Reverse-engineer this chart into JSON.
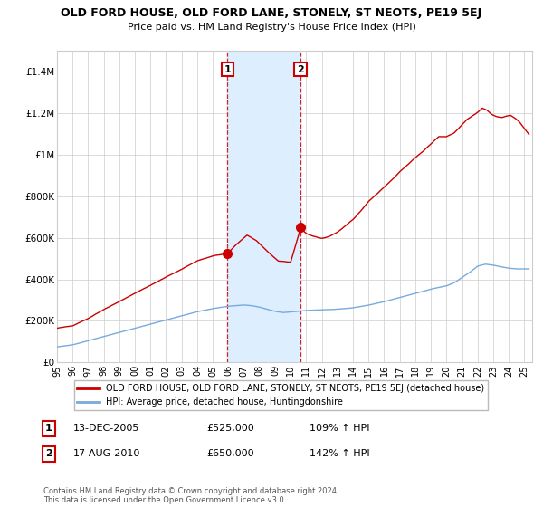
{
  "title": "OLD FORD HOUSE, OLD FORD LANE, STONELY, ST NEOTS, PE19 5EJ",
  "subtitle": "Price paid vs. HM Land Registry's House Price Index (HPI)",
  "legend_line1": "OLD FORD HOUSE, OLD FORD LANE, STONELY, ST NEOTS, PE19 5EJ (detached house)",
  "legend_line2": "HPI: Average price, detached house, Huntingdonshire",
  "transaction1_label": "1",
  "transaction1_date": "13-DEC-2005",
  "transaction1_price": "£525,000",
  "transaction1_hpi": "109% ↑ HPI",
  "transaction1_year": 2005.95,
  "transaction1_value": 525000,
  "transaction2_label": "2",
  "transaction2_date": "17-AUG-2010",
  "transaction2_price": "£650,000",
  "transaction2_hpi": "142% ↑ HPI",
  "transaction2_year": 2010.63,
  "transaction2_value": 650000,
  "red_line_color": "#cc0000",
  "blue_line_color": "#77aadd",
  "shade_color": "#ddeeff",
  "grid_color": "#cccccc",
  "footnote": "Contains HM Land Registry data © Crown copyright and database right 2024.\nThis data is licensed under the Open Government Licence v3.0.",
  "yticks": [
    0,
    200000,
    400000,
    600000,
    800000,
    1000000,
    1200000,
    1400000
  ],
  "ytick_labels": [
    "£0",
    "£200K",
    "£400K",
    "£600K",
    "£800K",
    "£1M",
    "£1.2M",
    "£1.4M"
  ],
  "xlim_start": 1995.0,
  "xlim_end": 2025.5,
  "ylim_top": 1500000
}
